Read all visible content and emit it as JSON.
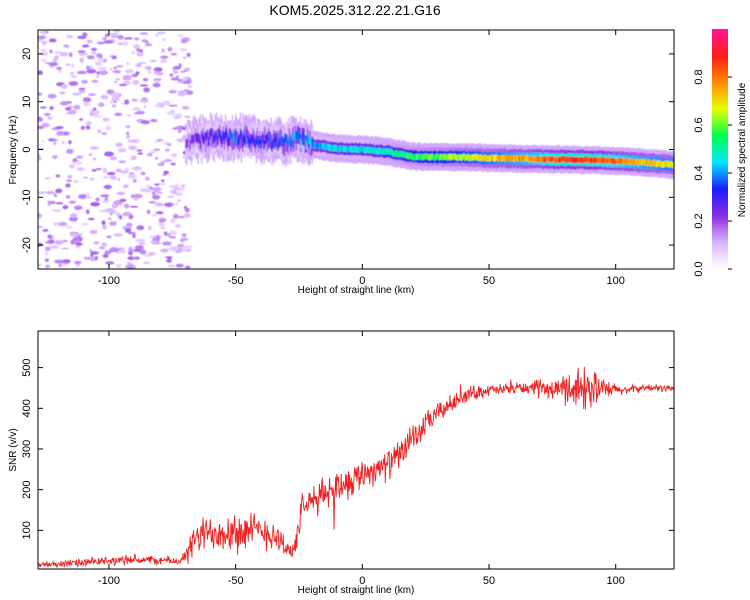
{
  "title": "KOM5.2025.312.22.21.G16",
  "chart_data": [
    {
      "type": "heatmap",
      "title": "KOM5.2025.312.22.21.G16",
      "xlabel": "Height of straight line (km)",
      "ylabel": "Frequency (Hz)",
      "xlim": [
        -128,
        123
      ],
      "ylim": [
        -25,
        25
      ],
      "xticks": [
        -100,
        -50,
        0,
        50,
        100
      ],
      "yticks": [
        -20,
        -10,
        0,
        10,
        20
      ],
      "xtick_labels": [
        "-100",
        "-50",
        "0",
        "50",
        "100"
      ],
      "ytick_labels": [
        "-20",
        "-10",
        "0",
        "10",
        "20"
      ],
      "ridge": {
        "x": [
          -70,
          -60,
          -50,
          -40,
          -30,
          -25,
          -20,
          -10,
          0,
          10,
          20,
          30,
          40,
          50,
          60,
          70,
          80,
          90,
          100,
          110,
          123
        ],
        "frequency": [
          1.5,
          2.5,
          2.5,
          2,
          1.5,
          2.5,
          1,
          0.2,
          0,
          -0.5,
          -1.5,
          -1.6,
          -1.6,
          -1.8,
          -1.9,
          -2.0,
          -2.1,
          -2.2,
          -2.4,
          -2.7,
          -3.2
        ],
        "amplitude": [
          0.2,
          0.3,
          0.35,
          0.3,
          0.35,
          0.4,
          0.4,
          0.45,
          0.45,
          0.5,
          0.55,
          0.6,
          0.65,
          0.7,
          0.75,
          0.8,
          0.85,
          0.85,
          0.8,
          0.75,
          0.7
        ]
      },
      "noise_region": {
        "x_range": [
          -128,
          -68
        ],
        "frequency_range": [
          -25,
          25
        ],
        "amplitude": 0.1
      }
    },
    {
      "type": "colorbar",
      "label": "Normalized spectral amplitude",
      "range": [
        0,
        1
      ],
      "ticks": [
        0,
        0.2,
        0.4,
        0.6,
        0.8
      ],
      "tick_labels": [
        "0.0",
        "0.2",
        "0.4",
        "0.6",
        "0.8"
      ],
      "colors": [
        "#ffffff",
        "#d8b4fe",
        "#8b2be2",
        "#1c1cff",
        "#00e6ff",
        "#00ff4a",
        "#e8ff00",
        "#ff8a00",
        "#ff1a1a",
        "#ff1493"
      ]
    },
    {
      "type": "line",
      "xlabel": "Height of straight line (km)",
      "ylabel": "SNR (v/v)",
      "xlim": [
        -128,
        123
      ],
      "ylim": [
        5,
        590
      ],
      "xticks": [
        -100,
        -50,
        0,
        50,
        100
      ],
      "yticks": [
        100,
        200,
        300,
        400,
        500
      ],
      "xtick_labels": [
        "-100",
        "-50",
        "0",
        "50",
        "100"
      ],
      "ytick_labels": [
        "100",
        "200",
        "300",
        "400",
        "500"
      ],
      "line_color": "#ee2222",
      "series": [
        {
          "name": "SNR",
          "x": [
            -128,
            -120,
            -110,
            -100,
            -90,
            -80,
            -72,
            -69,
            -66,
            -60,
            -55,
            -50,
            -45,
            -40,
            -35,
            -30,
            -27,
            -24,
            -20,
            -15,
            -10,
            -5,
            0,
            5,
            10,
            15,
            20,
            25,
            30,
            35,
            40,
            45,
            50,
            55,
            60,
            65,
            70,
            75,
            80,
            85,
            90,
            95,
            100,
            105,
            110,
            115,
            123
          ],
          "y": [
            15,
            18,
            20,
            25,
            28,
            26,
            25,
            40,
            80,
            95,
            100,
            100,
            95,
            100,
            90,
            60,
            45,
            150,
            170,
            190,
            210,
            220,
            240,
            250,
            260,
            290,
            320,
            360,
            390,
            410,
            430,
            440,
            445,
            445,
            450,
            450,
            450,
            445,
            450,
            450,
            450,
            445,
            445,
            445,
            450,
            450,
            450
          ],
          "noise": [
            10,
            12,
            14,
            15,
            16,
            15,
            15,
            35,
            55,
            65,
            70,
            70,
            65,
            60,
            55,
            40,
            30,
            50,
            55,
            55,
            55,
            55,
            50,
            50,
            50,
            45,
            45,
            40,
            35,
            30,
            25,
            25,
            20,
            20,
            20,
            20,
            25,
            30,
            50,
            80,
            70,
            40,
            20,
            15,
            12,
            12,
            12
          ]
        }
      ]
    }
  ]
}
